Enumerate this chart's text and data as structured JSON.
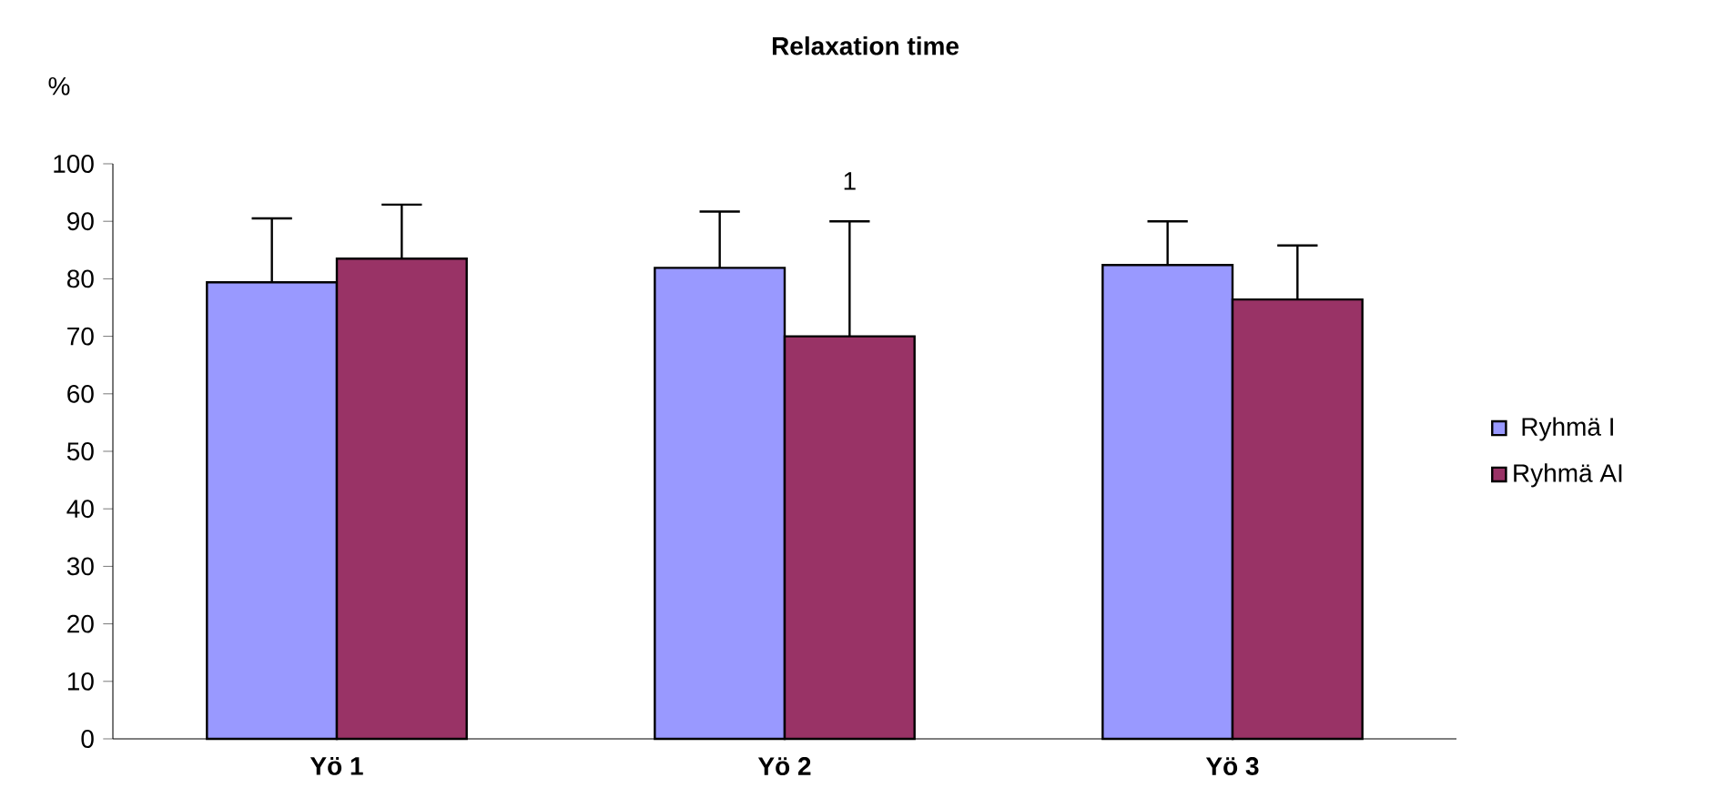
{
  "chart_data": {
    "type": "bar",
    "title": "Relaxation time",
    "ylabel": "%",
    "categories": [
      "Yö 1",
      "Yö 2",
      "Yö 3"
    ],
    "series": [
      {
        "name": "Ryhmä I",
        "color": "#9999ff",
        "values": [
          79.4,
          81.9,
          82.4
        ],
        "errors": [
          [
            79.4,
            90.5
          ],
          [
            81.9,
            91.7
          ],
          [
            82.4,
            90.0
          ]
        ]
      },
      {
        "name": "Ryhmä AI",
        "color": "#993366",
        "values": [
          83.5,
          70.0,
          76.4
        ],
        "errors": [
          [
            83.5,
            92.9
          ],
          [
            70.0,
            90.0
          ],
          [
            76.4,
            85.8
          ]
        ]
      }
    ],
    "annotations": [
      "1"
    ],
    "ylim": [
      0,
      100
    ],
    "yticks": [
      0,
      10,
      20,
      30,
      40,
      50,
      60,
      70,
      80,
      90,
      100
    ],
    "grid": false,
    "legend": "right"
  }
}
